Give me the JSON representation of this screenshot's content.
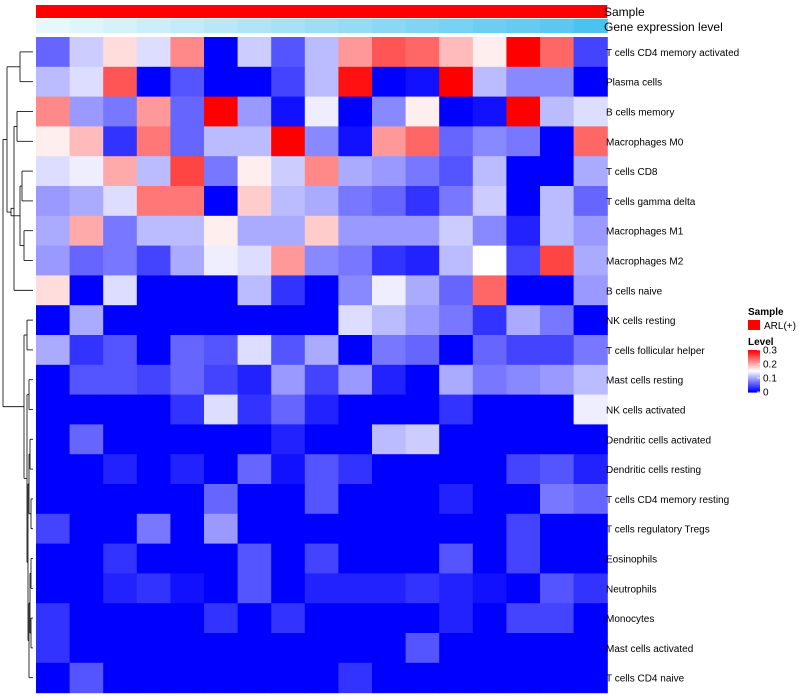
{
  "chart_data": {
    "type": "heatmap",
    "title": "",
    "annotations": {
      "sample_label": "Sample",
      "expression_label": "Gene expression level",
      "sample_color": "#ff0000",
      "expression_values": [
        0.0,
        0.06,
        0.12,
        0.18,
        0.24,
        0.3,
        0.36,
        0.42,
        0.48,
        0.54,
        0.6,
        0.66,
        0.72,
        0.78,
        0.84,
        0.9,
        1.0
      ]
    },
    "rows": [
      "T cells CD4 memory activated",
      "Plasma cells",
      "B cells memory",
      "Macrophages M0",
      "T cells CD8",
      "T cells gamma delta",
      "Macrophages M1",
      "Macrophages M2",
      "B cells naive",
      "NK cells resting",
      "T cells follicular helper",
      "Mast cells resting",
      "NK cells activated",
      "Dendritic cells activated",
      "Dendritic cells resting",
      "T cells CD4 memory resting",
      "T cells regulatory  Tregs",
      "Eosinophils",
      "Neutrophils",
      "Monocytes",
      "Mast cells activated",
      "T cells CD4 naive"
    ],
    "n_columns": 17,
    "values": [
      [
        0.06,
        0.12,
        0.17,
        0.13,
        0.22,
        0.0,
        0.12,
        0.05,
        0.11,
        0.21,
        0.25,
        0.24,
        0.19,
        0.16,
        0.3,
        0.24,
        0.04
      ],
      [
        0.11,
        0.13,
        0.25,
        0.0,
        0.05,
        0.0,
        0.0,
        0.04,
        0.11,
        0.29,
        0.0,
        0.01,
        0.3,
        0.11,
        0.08,
        0.08,
        0.0
      ],
      [
        0.22,
        0.09,
        0.07,
        0.21,
        0.06,
        0.3,
        0.09,
        0.01,
        0.14,
        0.0,
        0.08,
        0.16,
        0.0,
        0.01,
        0.3,
        0.11,
        0.13
      ],
      [
        0.16,
        0.19,
        0.03,
        0.23,
        0.06,
        0.11,
        0.11,
        0.3,
        0.08,
        0.01,
        0.21,
        0.24,
        0.06,
        0.08,
        0.07,
        0.0,
        0.24
      ],
      [
        0.13,
        0.14,
        0.2,
        0.11,
        0.26,
        0.07,
        0.16,
        0.12,
        0.22,
        0.1,
        0.09,
        0.07,
        0.05,
        0.11,
        0.0,
        0.0,
        0.1
      ],
      [
        0.09,
        0.1,
        0.13,
        0.23,
        0.23,
        0.0,
        0.18,
        0.11,
        0.1,
        0.07,
        0.06,
        0.03,
        0.07,
        0.12,
        0.0,
        0.11,
        0.06
      ],
      [
        0.1,
        0.2,
        0.07,
        0.11,
        0.11,
        0.16,
        0.1,
        0.1,
        0.18,
        0.09,
        0.09,
        0.09,
        0.12,
        0.08,
        0.02,
        0.11,
        0.09
      ],
      [
        0.09,
        0.06,
        0.07,
        0.04,
        0.1,
        0.14,
        0.13,
        0.21,
        0.08,
        0.07,
        0.03,
        0.02,
        0.11,
        0.15,
        0.04,
        0.26,
        0.1
      ],
      [
        0.17,
        0.0,
        0.13,
        0.0,
        0.0,
        0.0,
        0.11,
        0.03,
        0.0,
        0.08,
        0.14,
        0.1,
        0.06,
        0.24,
        0.0,
        0.0,
        0.09
      ],
      [
        0.0,
        0.1,
        0.0,
        0.0,
        0.0,
        0.0,
        0.0,
        0.0,
        0.0,
        0.13,
        0.11,
        0.09,
        0.07,
        0.03,
        0.1,
        0.07,
        0.0
      ],
      [
        0.1,
        0.03,
        0.05,
        0.0,
        0.06,
        0.05,
        0.13,
        0.05,
        0.1,
        0.0,
        0.07,
        0.06,
        0.0,
        0.06,
        0.04,
        0.04,
        0.07
      ],
      [
        0.0,
        0.05,
        0.05,
        0.04,
        0.06,
        0.04,
        0.02,
        0.09,
        0.04,
        0.09,
        0.02,
        0.0,
        0.1,
        0.07,
        0.08,
        0.09,
        0.11
      ],
      [
        0.0,
        0.0,
        0.0,
        0.0,
        0.03,
        0.13,
        0.03,
        0.06,
        0.02,
        0.0,
        0.0,
        0.0,
        0.03,
        0.0,
        0.0,
        0.0,
        0.14
      ],
      [
        0.0,
        0.06,
        0.0,
        0.0,
        0.0,
        0.0,
        0.0,
        0.02,
        0.0,
        0.0,
        0.11,
        0.12,
        0.0,
        0.0,
        0.0,
        0.0,
        0.0
      ],
      [
        0.0,
        0.0,
        0.02,
        0.0,
        0.02,
        0.0,
        0.06,
        0.01,
        0.05,
        0.03,
        0.0,
        0.0,
        0.0,
        0.0,
        0.04,
        0.05,
        0.02
      ],
      [
        0.0,
        0.0,
        0.0,
        0.0,
        0.0,
        0.06,
        0.0,
        0.0,
        0.05,
        0.0,
        0.0,
        0.0,
        0.02,
        0.0,
        0.0,
        0.07,
        0.06
      ],
      [
        0.04,
        0.0,
        0.0,
        0.07,
        0.0,
        0.09,
        0.0,
        0.0,
        0.0,
        0.0,
        0.0,
        0.0,
        0.0,
        0.0,
        0.04,
        0.0,
        0.0
      ],
      [
        0.0,
        0.0,
        0.03,
        0.0,
        0.0,
        0.0,
        0.05,
        0.0,
        0.04,
        0.0,
        0.0,
        0.0,
        0.05,
        0.0,
        0.04,
        0.0,
        0.0
      ],
      [
        0.0,
        0.0,
        0.02,
        0.03,
        0.01,
        0.0,
        0.05,
        0.0,
        0.02,
        0.02,
        0.02,
        0.03,
        0.02,
        0.01,
        0.0,
        0.05,
        0.03
      ],
      [
        0.03,
        0.0,
        0.0,
        0.0,
        0.0,
        0.03,
        0.0,
        0.03,
        0.0,
        0.0,
        0.0,
        0.0,
        0.02,
        0.0,
        0.04,
        0.04,
        0.0
      ],
      [
        0.03,
        0.0,
        0.0,
        0.0,
        0.0,
        0.0,
        0.0,
        0.0,
        0.0,
        0.0,
        0.0,
        0.05,
        0.0,
        0.0,
        0.0,
        0.0,
        0.0
      ],
      [
        0.0,
        0.05,
        0.0,
        0.0,
        0.0,
        0.0,
        0.0,
        0.0,
        0.0,
        0.03,
        0.0,
        0.0,
        0.0,
        0.0,
        0.0,
        0.0,
        0.0
      ]
    ],
    "legend": {
      "sample_title": "Sample",
      "sample_entry": "ARL(+)",
      "level_title": "Level",
      "level_ticks": [
        "0.3",
        "0.2",
        "0.1",
        "0"
      ],
      "level_range": [
        0,
        0.3
      ]
    },
    "colors": {
      "low": "#0000ff",
      "mid": "#ffffff",
      "high": "#ff0000",
      "expr_low": "#e8f7fc",
      "expr_high": "#4cc3ef"
    },
    "dendrogram": "left (row clustering)"
  }
}
